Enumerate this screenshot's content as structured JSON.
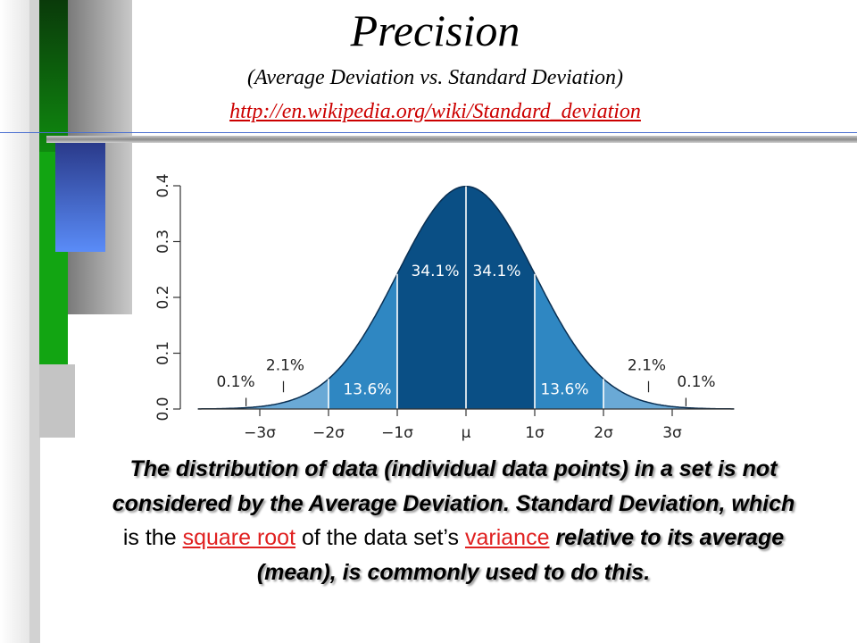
{
  "slide": {
    "title": "Precision",
    "subtitle": "(Average Deviation vs. Standard Deviation)",
    "link": "http://en.wikipedia.org/wiki/Standard_deviation"
  },
  "colors": {
    "dark_blue": "#0a4f85",
    "mid_blue": "#2f87c2",
    "light_blue": "#6aa9d6",
    "sidebar_green": "#12a512",
    "sidebar_blue": "#5a8cf8",
    "link_red": "#cc0000"
  },
  "chart_data": {
    "type": "area",
    "x": [
      -3,
      -2,
      -1,
      0,
      1,
      2,
      3
    ],
    "x_tick_labels": [
      "−3σ",
      "−2σ",
      "−1σ",
      "μ",
      "1σ",
      "2σ",
      "3σ"
    ],
    "y_ticks": [
      0.0,
      0.1,
      0.2,
      0.3,
      0.4
    ],
    "y_tick_labels": [
      "0.0",
      "0.1",
      "0.2",
      "0.3",
      "0.4"
    ],
    "xlim": [
      -4,
      4
    ],
    "ylim": [
      0,
      0.4
    ],
    "curve": "normal density",
    "regions": [
      {
        "from": -3,
        "to": -2,
        "label": "2.1%",
        "value": 2.1
      },
      {
        "from": -2,
        "to": -1,
        "label": "13.6%",
        "value": 13.6
      },
      {
        "from": -1,
        "to": 0,
        "label": "34.1%",
        "value": 34.1
      },
      {
        "from": 0,
        "to": 1,
        "label": "34.1%",
        "value": 34.1
      },
      {
        "from": 1,
        "to": 2,
        "label": "13.6%",
        "value": 13.6
      },
      {
        "from": 2,
        "to": 3,
        "label": "2.1%",
        "value": 2.1
      }
    ],
    "tail_labels": [
      {
        "side": "left",
        "label": "0.1%",
        "value": 0.1
      },
      {
        "side": "right",
        "label": "0.1%",
        "value": 0.1
      }
    ]
  },
  "text": {
    "p1": "The distribution of data (individual data points) in a set is not considered by the Average Deviation. Standard Deviation, which",
    "p2": " is the ",
    "link1": "square root",
    "p3": " of the data set’s ",
    "link2": "variance",
    "p4": " relative to its average (mean), is commonly used to do this."
  }
}
